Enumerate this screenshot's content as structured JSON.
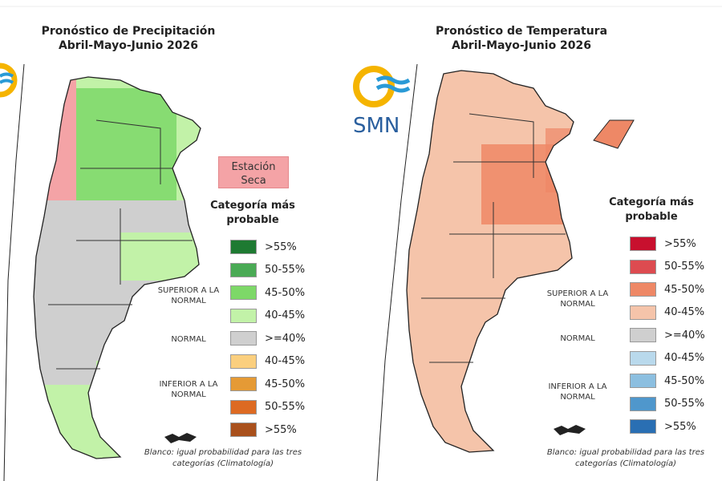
{
  "precip": {
    "title_line1": "Pronóstico de Precipitación",
    "title_line2": "Abril-Mayo-Junio 2026",
    "dry_season_label": "Estación Seca",
    "legend_title_line1": "Categoría más",
    "legend_title_line2": "probable",
    "categories": {
      "above": "SUPERIOR A LA NORMAL",
      "normal": "NORMAL",
      "below": "INFERIOR A LA NORMAL"
    },
    "legend": [
      {
        "label": ">55%",
        "color": "#1e7a32"
      },
      {
        "label": "50-55%",
        "color": "#4aaa55"
      },
      {
        "label": "45-50%",
        "color": "#7dd868"
      },
      {
        "label": "40-45%",
        "color": "#c2f2a8"
      },
      {
        "label": ">=40%",
        "color": "#cfcfcf"
      },
      {
        "label": "40-45%",
        "color": "#fbcf7e"
      },
      {
        "label": "45-50%",
        "color": "#e59a35"
      },
      {
        "label": "50-55%",
        "color": "#dd6a22"
      },
      {
        "label": ">55%",
        "color": "#a9501c"
      }
    ],
    "note": "Blanco: igual probabilidad para las tres categorías (Climatología)"
  },
  "temp": {
    "title_line1": "Pronóstico de Temperatura",
    "title_line2": "Abril-Mayo-Junio 2026",
    "logo_text": "SMN",
    "legend_title_line1": "Categoría más",
    "legend_title_line2": "probable",
    "categories": {
      "above": "SUPERIOR A LA NORMAL",
      "normal": "NORMAL",
      "below": "INFERIOR A LA NORMAL"
    },
    "legend": [
      {
        "label": ">55%",
        "color": "#c8102e"
      },
      {
        "label": "50-55%",
        "color": "#dd4b50"
      },
      {
        "label": "45-50%",
        "color": "#ee8866"
      },
      {
        "label": "40-45%",
        "color": "#f5c4aa"
      },
      {
        "label": ">=40%",
        "color": "#cfcfcf"
      },
      {
        "label": "40-45%",
        "color": "#b9d9ec"
      },
      {
        "label": "45-50%",
        "color": "#8cbfe0"
      },
      {
        "label": "50-55%",
        "color": "#4f97cc"
      },
      {
        "label": ">55%",
        "color": "#2a6fb3"
      }
    ],
    "note": "Blanco: igual probabilidad para las tres categorías (Climatología)"
  }
}
